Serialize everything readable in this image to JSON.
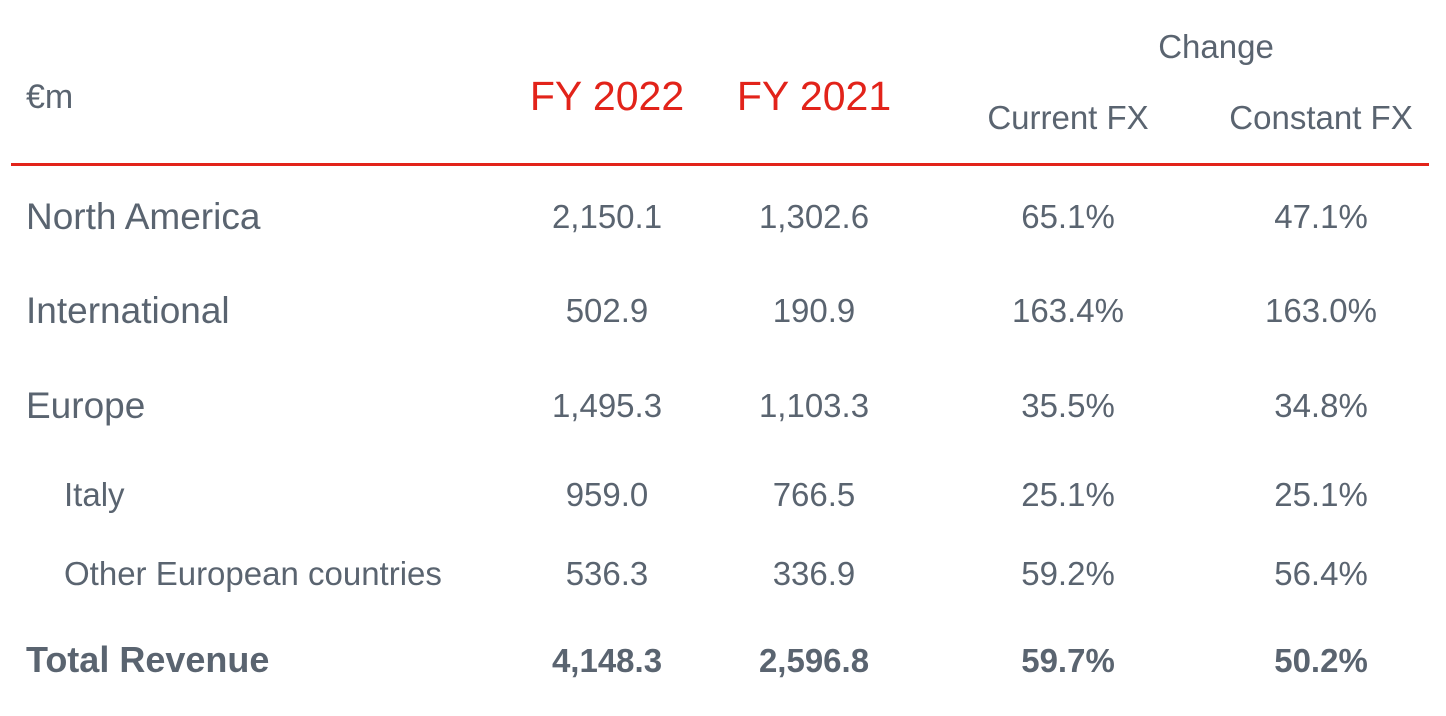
{
  "colors": {
    "text": "#5a6470",
    "accent": "#e2231a",
    "rule": "#e2231a"
  },
  "header": {
    "unit": "€m",
    "group": "Change",
    "columns": [
      "FY 2022",
      "FY 2021",
      "Current FX",
      "Constant FX"
    ]
  },
  "chart_data": {
    "type": "table",
    "unit": "€m",
    "columns": [
      "FY 2022",
      "FY 2021",
      "Current FX",
      "Constant FX"
    ],
    "column_group": {
      "label": "Change",
      "columns": [
        "Current FX",
        "Constant FX"
      ]
    },
    "rows": [
      {
        "label": "North America",
        "indent": false,
        "bold": false,
        "cells": [
          "2,150.1",
          "1,302.6",
          "65.1%",
          "47.1%"
        ]
      },
      {
        "label": "International",
        "indent": false,
        "bold": false,
        "cells": [
          "502.9",
          "190.9",
          "163.4%",
          "163.0%"
        ]
      },
      {
        "label": "Europe",
        "indent": false,
        "bold": false,
        "cells": [
          "1,495.3",
          "1,103.3",
          "35.5%",
          "34.8%"
        ]
      },
      {
        "label": "Italy",
        "indent": true,
        "bold": false,
        "cells": [
          "959.0",
          "766.5",
          "25.1%",
          "25.1%"
        ]
      },
      {
        "label": "Other European countries",
        "indent": true,
        "bold": false,
        "cells": [
          "536.3",
          "336.9",
          "59.2%",
          "56.4%"
        ]
      },
      {
        "label": "Total Revenue",
        "indent": false,
        "bold": true,
        "cells": [
          "4,148.3",
          "2,596.8",
          "59.7%",
          "50.2%"
        ]
      }
    ]
  }
}
